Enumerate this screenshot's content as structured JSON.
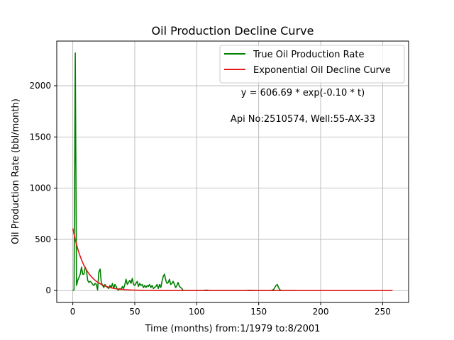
{
  "chart_data": {
    "type": "line",
    "title": "Oil Production Decline Curve",
    "xlabel": "Time (months) from:1/1979 to:8/2001",
    "ylabel": "Oil Production Rate (bbl/month)",
    "xlim": [
      -12.95,
      270.95
    ],
    "ylim": [
      -116,
      2436
    ],
    "xticks": [
      0,
      50,
      100,
      150,
      200,
      250
    ],
    "yticks": [
      0,
      500,
      1000,
      1500,
      2000
    ],
    "grid": true,
    "legend_position": "top-right",
    "annotations": [
      {
        "text": "y = 606.69 * exp(-0.10 * t)",
        "x": 185,
        "y": 1900
      },
      {
        "text": "Api No:2510574, Well:55-AX-33",
        "x": 185,
        "y": 1650
      }
    ],
    "series": [
      {
        "name": "True Oil Production Rate",
        "color": "#008000",
        "x": [
          0,
          1,
          2,
          3,
          4,
          5,
          6,
          7,
          8,
          9,
          10,
          11,
          12,
          13,
          14,
          15,
          16,
          17,
          18,
          19,
          20,
          21,
          22,
          23,
          24,
          25,
          26,
          27,
          28,
          29,
          30,
          31,
          32,
          33,
          34,
          35,
          36,
          37,
          38,
          39,
          40,
          41,
          42,
          43,
          44,
          45,
          46,
          47,
          48,
          49,
          50,
          51,
          52,
          53,
          54,
          55,
          56,
          57,
          58,
          59,
          60,
          61,
          62,
          63,
          64,
          65,
          66,
          67,
          68,
          69,
          70,
          71,
          72,
          73,
          74,
          75,
          76,
          77,
          78,
          79,
          80,
          81,
          82,
          83,
          84,
          85,
          86,
          87,
          88,
          89,
          90,
          95,
          100,
          105,
          108,
          110,
          120,
          140,
          142,
          150,
          160,
          162,
          163,
          164,
          165,
          166,
          167,
          168,
          170,
          180
        ],
        "y": [
          0,
          10,
          2320,
          50,
          100,
          130,
          160,
          230,
          160,
          160,
          230,
          200,
          100,
          80,
          90,
          80,
          60,
          50,
          70,
          60,
          5,
          180,
          210,
          80,
          50,
          30,
          60,
          40,
          30,
          20,
          50,
          30,
          70,
          20,
          60,
          40,
          10,
          5,
          20,
          10,
          40,
          20,
          60,
          110,
          60,
          80,
          100,
          70,
          120,
          60,
          50,
          70,
          90,
          40,
          70,
          50,
          60,
          30,
          50,
          30,
          50,
          40,
          60,
          30,
          50,
          20,
          30,
          40,
          60,
          20,
          60,
          30,
          90,
          140,
          160,
          100,
          70,
          80,
          110,
          60,
          70,
          90,
          60,
          30,
          50,
          80,
          40,
          30,
          20,
          0,
          0,
          0,
          0,
          0,
          5,
          0,
          0,
          0,
          3,
          0,
          0,
          10,
          30,
          50,
          60,
          30,
          10,
          0,
          0,
          0
        ]
      },
      {
        "name": "Exponential Oil Decline Curve",
        "color": "#e41a1c",
        "model": {
          "a": 606.69,
          "b": 0.1,
          "x_start": 0,
          "x_end": 258
        }
      }
    ]
  }
}
